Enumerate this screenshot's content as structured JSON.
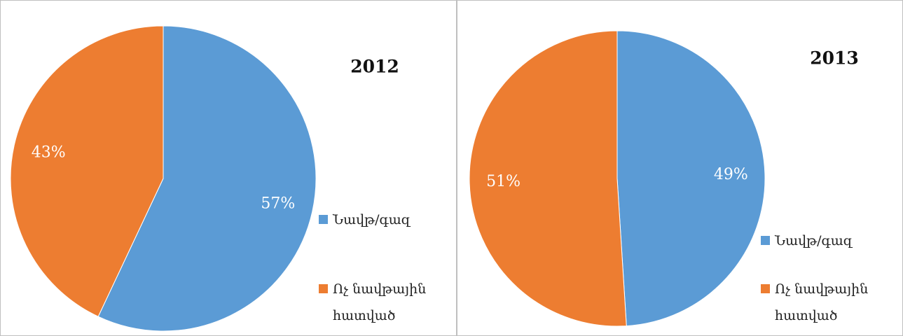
{
  "chart_data": [
    {
      "type": "pie",
      "title": "2012",
      "categories": [
        "Նավթ/գազ",
        "Ոչ նավթային հատված"
      ],
      "values": [
        57,
        43
      ],
      "value_labels": [
        "57%",
        "43%"
      ],
      "colors": [
        "#5b9bd5",
        "#ed7d31"
      ]
    },
    {
      "type": "pie",
      "title": "2013",
      "categories": [
        "Նավթ/գազ",
        "Ոչ նավթային հատված"
      ],
      "values": [
        49,
        51
      ],
      "value_labels": [
        "49%",
        "51%"
      ],
      "colors": [
        "#5b9bd5",
        "#ed7d31"
      ]
    }
  ]
}
